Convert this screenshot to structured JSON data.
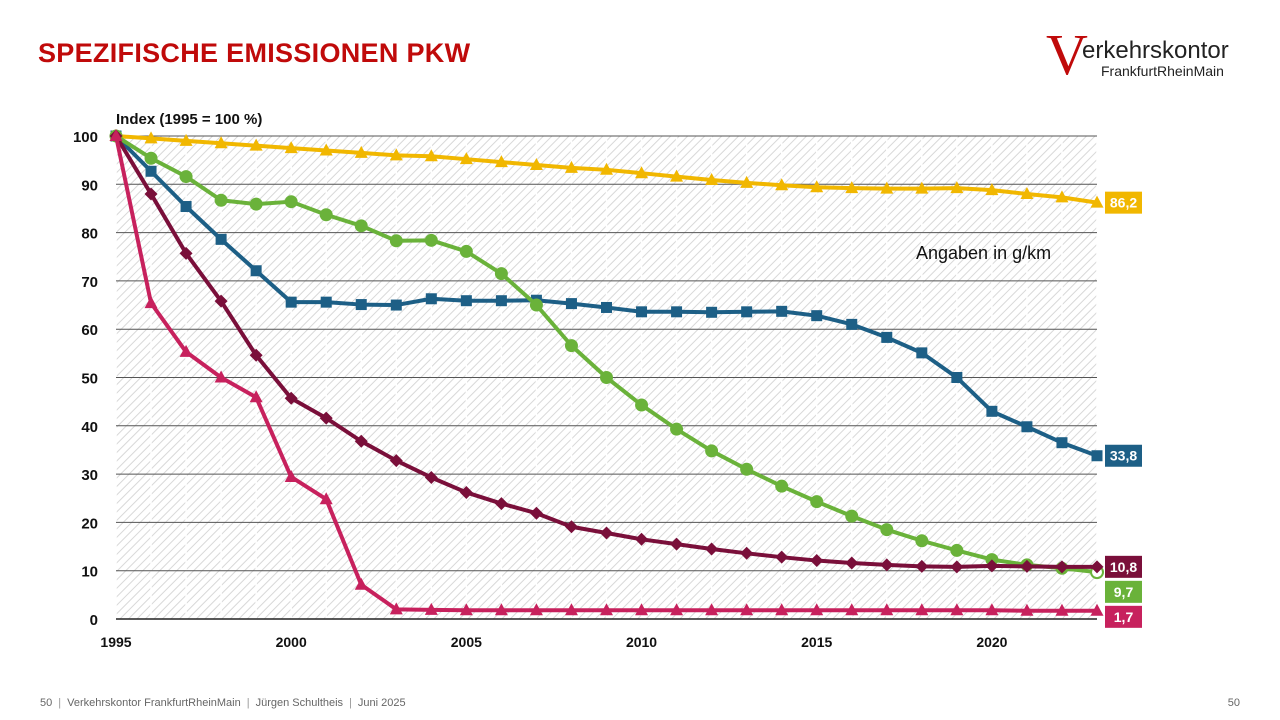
{
  "slide": {
    "title": "SPEZIFISCHE EMISSIONEN PKW",
    "logo": {
      "initial": "V",
      "brand": "erkehrskontor",
      "sub": "FrankfurtRheinMain"
    },
    "note": "Angaben in g/km",
    "footer": {
      "page": "50",
      "org": "Verkehrskontor FrankfurtRheinMain",
      "author": "Jürgen Schultheis",
      "date": "Juni 2025"
    },
    "page_right": "50"
  },
  "chart_data": {
    "type": "line",
    "title": "Index (1995 = 100 %)",
    "ylim": [
      0,
      100
    ],
    "yticks": [
      0,
      10,
      20,
      30,
      40,
      50,
      60,
      70,
      80,
      90,
      100
    ],
    "xlim": [
      1995,
      2023
    ],
    "xticks": [
      1995,
      2000,
      2005,
      2010,
      2015,
      2020
    ],
    "x": [
      1995,
      1996,
      1997,
      1998,
      1999,
      2000,
      2001,
      2002,
      2003,
      2004,
      2005,
      2006,
      2007,
      2008,
      2009,
      2010,
      2011,
      2012,
      2013,
      2014,
      2015,
      2016,
      2017,
      2018,
      2019,
      2020,
      2021,
      2022,
      2023
    ],
    "series": [
      {
        "name": "yellow",
        "color": "#f1b700",
        "marker": "triangle",
        "end_label": "86,2",
        "values": [
          100,
          99.5,
          99,
          98.5,
          98,
          97.5,
          97,
          96.5,
          96,
          95.8,
          95.2,
          94.6,
          94,
          93.4,
          93,
          92.3,
          91.6,
          90.9,
          90.3,
          89.8,
          89.4,
          89.2,
          89.1,
          89.1,
          89.2,
          88.8,
          88,
          87.3,
          86.2
        ]
      },
      {
        "name": "blue",
        "color": "#1d5f86",
        "marker": "square",
        "end_label": "33,8",
        "values": [
          100,
          92.7,
          85.4,
          78.6,
          72.1,
          65.6,
          65.6,
          65.1,
          65,
          66.3,
          65.9,
          65.9,
          66,
          65.3,
          64.5,
          63.6,
          63.6,
          63.5,
          63.6,
          63.7,
          62.8,
          61,
          58.3,
          55.1,
          50,
          43,
          39.8,
          36.5,
          33.8
        ]
      },
      {
        "name": "green",
        "color": "#6ab23a",
        "marker": "circle",
        "end_label": "9,7",
        "values": [
          100,
          95.4,
          91.6,
          86.7,
          85.9,
          86.4,
          83.7,
          81.4,
          78.3,
          78.4,
          76.1,
          71.5,
          65,
          56.6,
          50,
          44.3,
          39.3,
          34.8,
          31,
          27.5,
          24.3,
          21.3,
          18.5,
          16.2,
          14.2,
          12.3,
          11.2,
          10.5,
          9.7
        ]
      },
      {
        "name": "darkred",
        "color": "#7a0f3a",
        "marker": "diamond",
        "end_label": "10,8",
        "values": [
          100,
          88,
          75.7,
          65.8,
          54.6,
          45.7,
          41.6,
          36.8,
          32.8,
          29.3,
          26.2,
          23.9,
          21.9,
          19.1,
          17.8,
          16.5,
          15.5,
          14.5,
          13.6,
          12.8,
          12.1,
          11.6,
          11.2,
          10.9,
          10.8,
          11,
          10.9,
          10.8,
          10.8
        ]
      },
      {
        "name": "pink",
        "color": "#c7215d",
        "marker": "triangle",
        "end_label": "1,7",
        "values": [
          100,
          65.4,
          55.3,
          50,
          45.9,
          29.4,
          24.8,
          7.1,
          2,
          1.9,
          1.8,
          1.8,
          1.8,
          1.8,
          1.8,
          1.8,
          1.8,
          1.8,
          1.8,
          1.8,
          1.8,
          1.8,
          1.8,
          1.8,
          1.8,
          1.8,
          1.7,
          1.7,
          1.7
        ]
      }
    ]
  }
}
